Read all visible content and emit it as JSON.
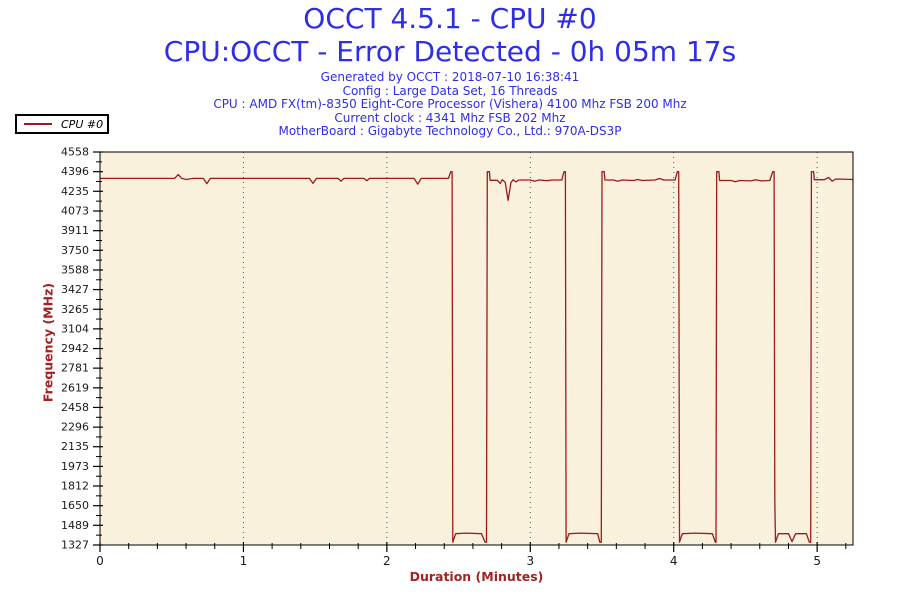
{
  "header": {
    "title": "OCCT 4.5.1 - CPU #0",
    "subtitle": "CPU:OCCT - Error Detected - 0h 05m 17s",
    "info_lines": [
      "Generated by OCCT : 2018-07-10 16:38:41",
      "Config : Large Data Set, 16 Threads",
      "CPU : AMD FX(tm)-8350 Eight-Core Processor (Vishera) 4100 Mhz FSB 200 Mhz",
      "Current clock : 4341 Mhz FSB 202 Mhz",
      "MotherBoard : Gigabyte Technology Co., Ltd.: 970A-DS3P"
    ]
  },
  "legend": {
    "series_label": "CPU #0"
  },
  "colors": {
    "title_blue": "#2E2EE8",
    "series_red": "#9B1B1B",
    "axis_title_red": "#A52222",
    "plot_bg": "#FAF1DC",
    "tick_text": "#1A1A1A",
    "grid_dot": "#555555",
    "axis_line": "#000000"
  },
  "chart_data": {
    "type": "line",
    "title": "",
    "xlabel": "Duration (Minutes)",
    "ylabel": "Frequency (MHz)",
    "xlim": [
      0,
      5.25
    ],
    "ylim": [
      1327,
      4558
    ],
    "x_major_ticks": [
      0,
      1,
      2,
      3,
      4,
      5
    ],
    "x_minor_step": 0.2,
    "y_major_ticks": [
      4558,
      4396,
      4235,
      4073,
      3911,
      3750,
      3588,
      3427,
      3265,
      3104,
      2942,
      2781,
      2619,
      2458,
      2296,
      2135,
      1973,
      1812,
      1650,
      1489,
      1327
    ],
    "y_minor_between_majors": true,
    "grid": "vertical dotted lines at each x major tick",
    "legend_position": "top-left outside plot",
    "series": [
      {
        "name": "CPU #0",
        "color": "#9B1B1B",
        "points": [
          [
            0.0,
            4341
          ],
          [
            0.52,
            4341
          ],
          [
            0.545,
            4372
          ],
          [
            0.57,
            4341
          ],
          [
            0.6,
            4332
          ],
          [
            0.65,
            4341
          ],
          [
            0.72,
            4341
          ],
          [
            0.745,
            4298
          ],
          [
            0.77,
            4341
          ],
          [
            1.46,
            4341
          ],
          [
            1.485,
            4300
          ],
          [
            1.51,
            4341
          ],
          [
            1.66,
            4341
          ],
          [
            1.68,
            4318
          ],
          [
            1.7,
            4341
          ],
          [
            1.84,
            4341
          ],
          [
            1.86,
            4322
          ],
          [
            1.88,
            4341
          ],
          [
            2.19,
            4341
          ],
          [
            2.215,
            4294
          ],
          [
            2.24,
            4341
          ],
          [
            2.43,
            4341
          ],
          [
            2.445,
            4396
          ],
          [
            2.455,
            4396
          ],
          [
            2.46,
            1350
          ],
          [
            2.48,
            1420
          ],
          [
            2.55,
            1425
          ],
          [
            2.66,
            1420
          ],
          [
            2.685,
            1350
          ],
          [
            2.695,
            1350
          ],
          [
            2.7,
            4396
          ],
          [
            2.715,
            4396
          ],
          [
            2.72,
            4325
          ],
          [
            2.77,
            4325
          ],
          [
            2.79,
            4300
          ],
          [
            2.805,
            4330
          ],
          [
            2.825,
            4310
          ],
          [
            2.845,
            4160
          ],
          [
            2.865,
            4305
          ],
          [
            2.88,
            4330
          ],
          [
            2.9,
            4312
          ],
          [
            2.92,
            4328
          ],
          [
            3.0,
            4328
          ],
          [
            3.03,
            4318
          ],
          [
            3.06,
            4328
          ],
          [
            3.12,
            4322
          ],
          [
            3.15,
            4328
          ],
          [
            3.22,
            4328
          ],
          [
            3.235,
            4396
          ],
          [
            3.245,
            4396
          ],
          [
            3.25,
            1350
          ],
          [
            3.27,
            1420
          ],
          [
            3.35,
            1425
          ],
          [
            3.47,
            1420
          ],
          [
            3.485,
            1350
          ],
          [
            3.495,
            1350
          ],
          [
            3.5,
            4396
          ],
          [
            3.515,
            4396
          ],
          [
            3.52,
            4328
          ],
          [
            3.58,
            4328
          ],
          [
            3.61,
            4318
          ],
          [
            3.64,
            4328
          ],
          [
            3.72,
            4324
          ],
          [
            3.75,
            4332
          ],
          [
            3.78,
            4324
          ],
          [
            3.87,
            4328
          ],
          [
            3.9,
            4340
          ],
          [
            3.93,
            4328
          ],
          [
            4.01,
            4328
          ],
          [
            4.025,
            4396
          ],
          [
            4.035,
            4396
          ],
          [
            4.04,
            1350
          ],
          [
            4.06,
            1420
          ],
          [
            4.15,
            1425
          ],
          [
            4.27,
            1420
          ],
          [
            4.29,
            1350
          ],
          [
            4.295,
            1350
          ],
          [
            4.3,
            4396
          ],
          [
            4.315,
            4396
          ],
          [
            4.32,
            4324
          ],
          [
            4.4,
            4324
          ],
          [
            4.43,
            4314
          ],
          [
            4.46,
            4324
          ],
          [
            4.54,
            4320
          ],
          [
            4.57,
            4330
          ],
          [
            4.61,
            4320
          ],
          [
            4.67,
            4324
          ],
          [
            4.69,
            4396
          ],
          [
            4.7,
            4396
          ],
          [
            4.705,
            1700
          ],
          [
            4.71,
            1350
          ],
          [
            4.73,
            1420
          ],
          [
            4.8,
            1420
          ],
          [
            4.825,
            1355
          ],
          [
            4.85,
            1420
          ],
          [
            4.925,
            1420
          ],
          [
            4.945,
            1350
          ],
          [
            4.955,
            1350
          ],
          [
            4.96,
            4396
          ],
          [
            4.975,
            4396
          ],
          [
            4.98,
            4330
          ],
          [
            5.05,
            4330
          ],
          [
            5.08,
            4348
          ],
          [
            5.105,
            4318
          ],
          [
            5.13,
            4336
          ],
          [
            5.25,
            4332
          ]
        ]
      }
    ]
  }
}
